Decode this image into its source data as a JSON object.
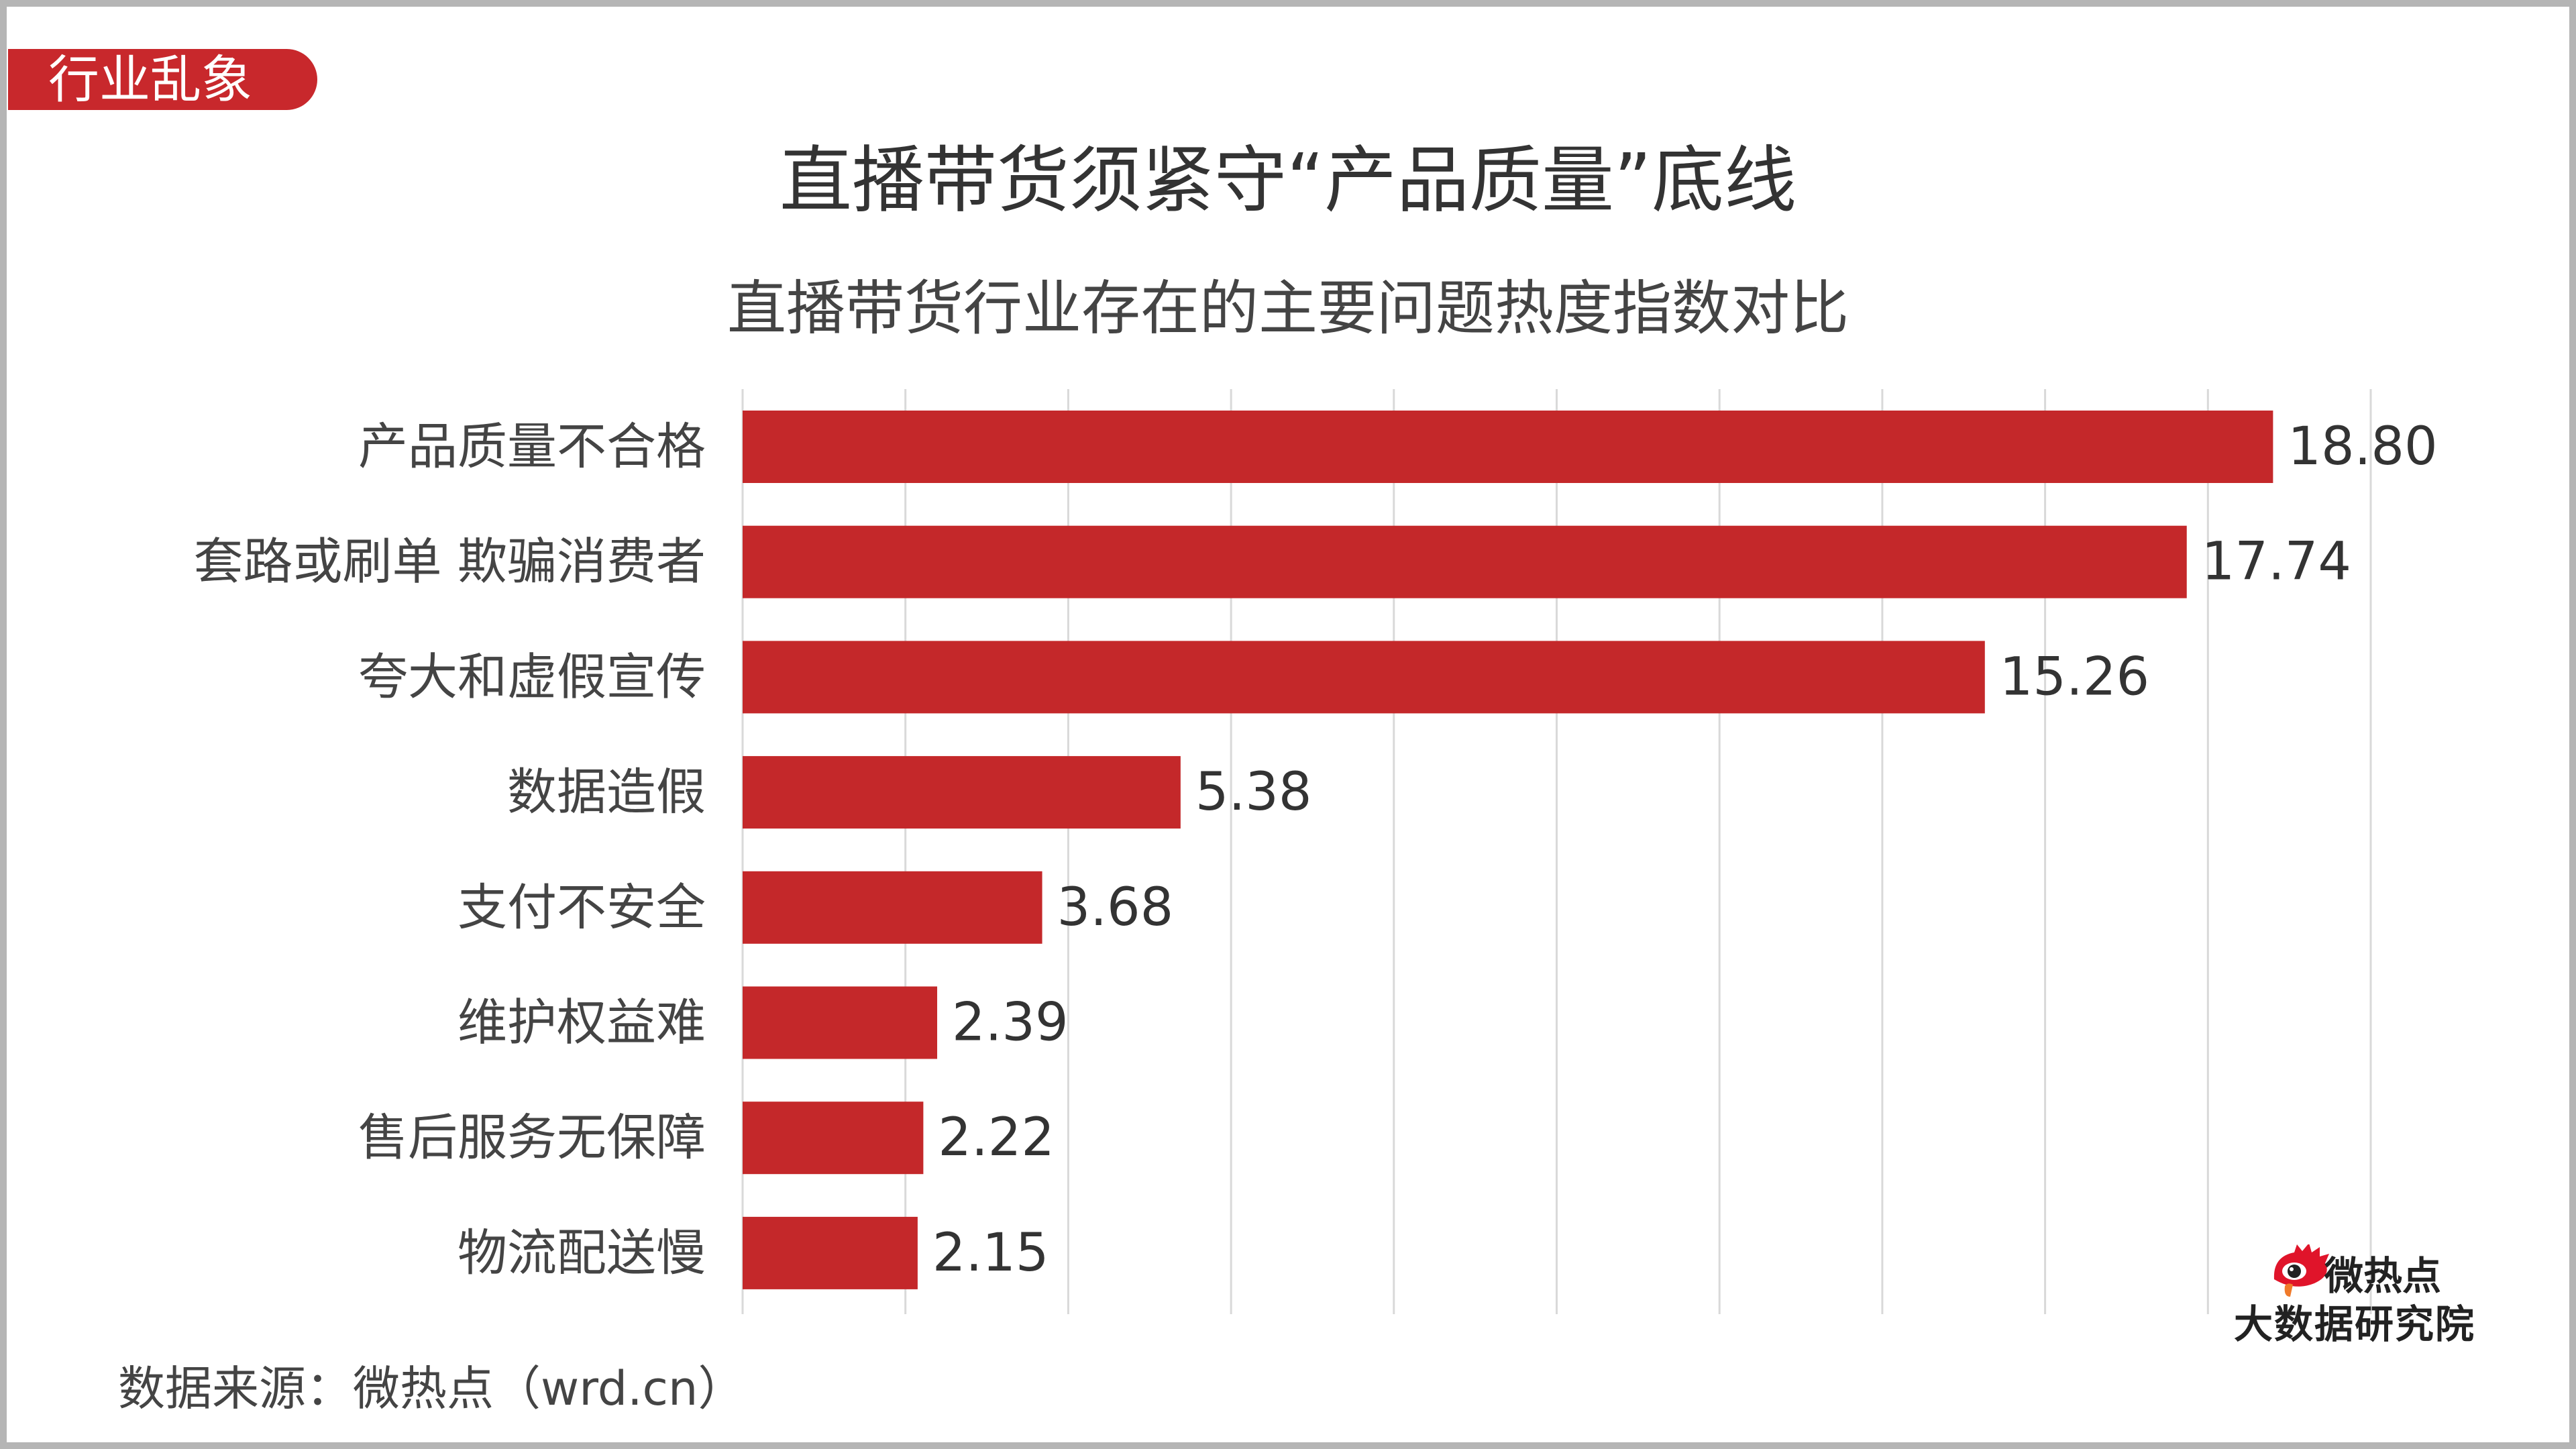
{
  "tag": "行业乱象",
  "title": "直播带货须紧守“产品质量”底线",
  "subtitle": "直播带货行业存在的主要问题热度指数对比",
  "source": "数据来源：微热点（wrd.cn）",
  "logo": {
    "line1": "微热点",
    "line2": "大数据研究院"
  },
  "colors": {
    "bar": "#c4282a",
    "tag": "#c8282c",
    "grid": "#d9d9d9"
  },
  "chart_data": {
    "type": "bar",
    "orientation": "horizontal",
    "title": "直播带货行业存在的主要问题热度指数对比",
    "categories": [
      "产品质量不合格",
      "套路或刷单 欺骗消费者",
      "夸大和虚假宣传",
      "数据造假",
      "支付不安全",
      "维护权益难",
      "售后服务无保障",
      "物流配送慢"
    ],
    "values": [
      18.8,
      17.74,
      15.26,
      5.38,
      3.68,
      2.39,
      2.22,
      2.15
    ],
    "value_labels": [
      "18.80",
      "17.74",
      "15.26",
      "5.38",
      "3.68",
      "2.39",
      "2.22",
      "2.15"
    ],
    "xlim": [
      0,
      20
    ],
    "x_tick_step": 2,
    "x_tick_labels_shown": false,
    "grid": true,
    "xlabel": "",
    "ylabel": ""
  }
}
